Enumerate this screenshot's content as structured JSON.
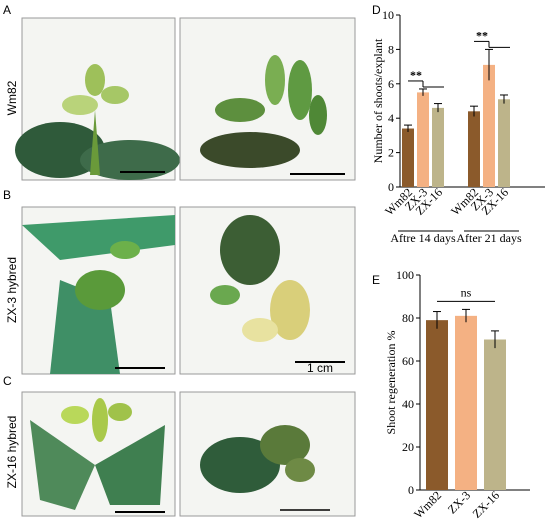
{
  "figure": {
    "panels": [
      "A",
      "B",
      "C",
      "D",
      "E"
    ],
    "rows": [
      "Wm82",
      "ZX-3 hybred",
      "ZX-16 hybred"
    ],
    "scale_label": "1 cm"
  },
  "chart_data": [
    {
      "type": "grouped-bar",
      "ylabel": "Number of shoots/explant",
      "categories": [
        "Wm82",
        "ZX-3",
        "ZX-16"
      ],
      "colors": [
        "#8b5a2b",
        "#f4b183",
        "#bdb48a"
      ],
      "series": [
        {
          "name": "Aftre 14 days",
          "values": [
            3.4,
            5.5,
            4.6
          ],
          "errors": [
            0.2,
            0.2,
            0.25
          ]
        },
        {
          "name": "After 21 days",
          "values": [
            4.4,
            7.1,
            5.1
          ],
          "errors": [
            0.3,
            0.9,
            0.25
          ]
        }
      ],
      "annotations": [
        "**",
        "**"
      ],
      "ylim": [
        0,
        10
      ],
      "yticks": [
        0,
        2,
        4,
        6,
        8,
        10
      ]
    },
    {
      "type": "bar",
      "ylabel": "Shoot regeneration %",
      "categories": [
        "Wm82",
        "ZX-3",
        "ZX-16"
      ],
      "colors": [
        "#8b5a2b",
        "#f4b183",
        "#bdb48a"
      ],
      "values": [
        79,
        81,
        70
      ],
      "errors": [
        4,
        3,
        4
      ],
      "annotations": [
        "ns"
      ],
      "ylim": [
        0,
        100
      ],
      "yticks": [
        0,
        20,
        40,
        60,
        80,
        100
      ]
    }
  ]
}
